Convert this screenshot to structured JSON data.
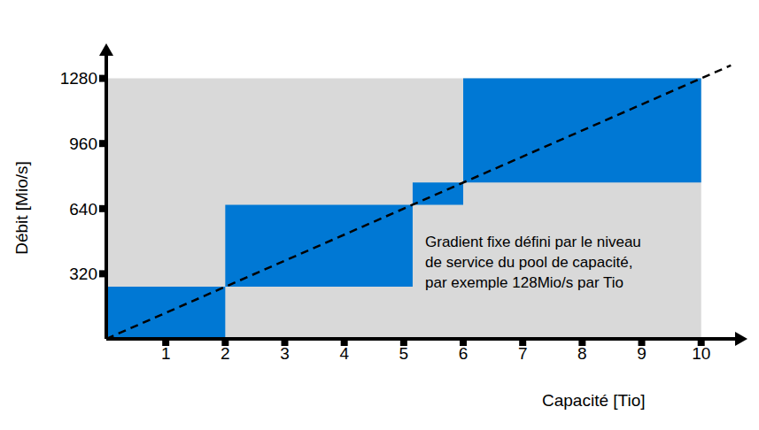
{
  "chart_data": {
    "type": "area",
    "x_label": "Capacité [Tio]",
    "y_label": "Débit [Mio/s]",
    "annotation": [
      "Gradient fixe défini par le niveau",
      "de service du pool de capacité,",
      "par exemple 128Mio/s par Tio"
    ],
    "xlim": [
      0,
      10.6
    ],
    "ylim": [
      0,
      1400
    ],
    "xticks": [
      1,
      2,
      3,
      4,
      5,
      6,
      7,
      8,
      9,
      10
    ],
    "yticks": [
      320,
      640,
      960,
      1280
    ],
    "grid": false,
    "background": {
      "x": [
        0,
        10
      ],
      "y": [
        0,
        1280
      ],
      "color": "#d9d9d9"
    },
    "blocks": [
      {
        "x": [
          0,
          2
        ],
        "y": [
          0,
          256
        ]
      },
      {
        "x": [
          2,
          5.15
        ],
        "y": [
          256,
          659
        ]
      },
      {
        "x": [
          5.15,
          6
        ],
        "y": [
          659,
          768
        ]
      },
      {
        "x": [
          6,
          10
        ],
        "y": [
          768,
          1280
        ]
      }
    ],
    "color": "#0078d4",
    "series": [
      {
        "x": [
          0,
          10.5
        ],
        "values": [
          0,
          1344
        ],
        "color": "#000000",
        "line_style": "dashed"
      }
    ]
  }
}
